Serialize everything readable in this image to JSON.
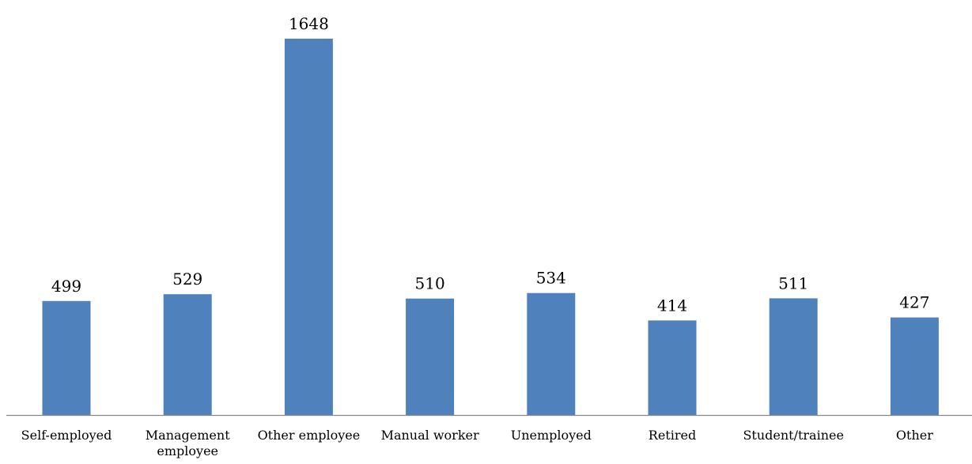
{
  "chart_data": {
    "type": "bar",
    "title": "",
    "xlabel": "",
    "ylabel": "",
    "categories": [
      "Self-employed",
      "Management employee",
      "Other employee",
      "Manual worker",
      "Unemployed",
      "Retired",
      "Student/trainee",
      "Other"
    ],
    "category_lines": [
      [
        "Self-employed"
      ],
      [
        "Management",
        "employee"
      ],
      [
        "Other employee"
      ],
      [
        "Manual worker"
      ],
      [
        "Unemployed"
      ],
      [
        "Retired"
      ],
      [
        "Student/trainee"
      ],
      [
        "Other"
      ]
    ],
    "values": [
      499,
      529,
      1648,
      510,
      534,
      414,
      511,
      427
    ],
    "ylim": [
      0,
      1800
    ],
    "grid": false,
    "legend": "none",
    "data_labels": true
  },
  "colors": {
    "bar": "#4f81bd",
    "axis": "#888888",
    "text": "#000000",
    "background": "#ffffff"
  }
}
